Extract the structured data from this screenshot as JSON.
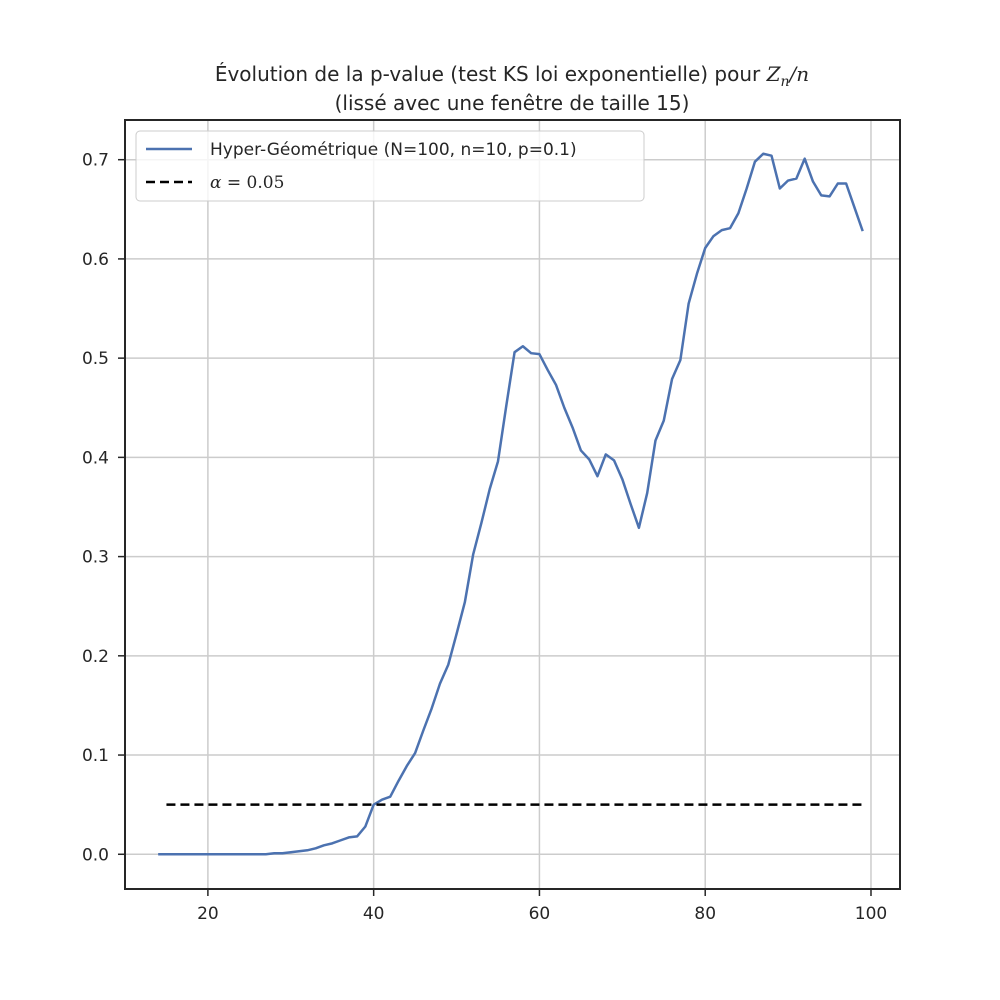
{
  "chart_data": {
    "type": "line",
    "title_line1": "Évolution de la p-value (test KS loi exponentielle) pour ",
    "title_math_Z": "Z",
    "title_math_sub": "n",
    "title_math_rest": "/n",
    "title_line2": "(lissé avec une fenêtre de taille 15)",
    "xlabel": "",
    "ylabel": "",
    "xlim": [
      10,
      103.5
    ],
    "ylim": [
      -0.035,
      0.74
    ],
    "xticks": [
      20,
      40,
      60,
      80,
      100
    ],
    "yticks": [
      0.0,
      0.1,
      0.2,
      0.3,
      0.4,
      0.5,
      0.6,
      0.7
    ],
    "xtick_labels": [
      "20",
      "40",
      "60",
      "80",
      "100"
    ],
    "ytick_labels": [
      "0.0",
      "0.1",
      "0.2",
      "0.3",
      "0.4",
      "0.5",
      "0.6",
      "0.7"
    ],
    "grid": true,
    "legend_position": "top-left",
    "series": [
      {
        "name": "Hyper-Géométrique (N=100, n=10, p=0.1)",
        "color": "#4c72b0",
        "style": "solid",
        "x": [
          14,
          15,
          16,
          17,
          18,
          19,
          20,
          21,
          22,
          23,
          24,
          25,
          26,
          27,
          28,
          29,
          30,
          31,
          32,
          33,
          34,
          35,
          36,
          37,
          38,
          39,
          40,
          41,
          42,
          43,
          44,
          45,
          46,
          47,
          48,
          49,
          50,
          51,
          52,
          53,
          54,
          55,
          56,
          57,
          58,
          59,
          60,
          61,
          62,
          63,
          64,
          65,
          66,
          67,
          68,
          69,
          70,
          71,
          72,
          73,
          74,
          75,
          76,
          77,
          78,
          79,
          80,
          81,
          82,
          83,
          84,
          85,
          86,
          87,
          88,
          89,
          90,
          91,
          92,
          93,
          94,
          95,
          96,
          97,
          98,
          99
        ],
        "y": [
          0,
          0,
          0,
          0,
          0,
          0,
          0,
          0,
          0,
          0,
          0,
          0,
          0,
          0,
          0.001,
          0.001,
          0.002,
          0.003,
          0.004,
          0.006,
          0.009,
          0.011,
          0.014,
          0.017,
          0.018,
          0.028,
          0.05,
          0.055,
          0.058,
          0.074,
          0.089,
          0.102,
          0.125,
          0.147,
          0.172,
          0.191,
          0.222,
          0.254,
          0.302,
          0.334,
          0.368,
          0.396,
          0.452,
          0.506,
          0.512,
          0.505,
          0.504,
          0.488,
          0.473,
          0.45,
          0.43,
          0.407,
          0.398,
          0.381,
          0.403,
          0.397,
          0.378,
          0.353,
          0.329,
          0.364,
          0.417,
          0.437,
          0.479,
          0.498,
          0.555,
          0.585,
          0.611,
          0.623,
          0.629,
          0.631,
          0.646,
          0.671,
          0.698,
          0.706,
          0.704,
          0.671,
          0.679,
          0.681,
          0.701,
          0.678,
          0.664,
          0.663,
          0.676,
          0.676,
          0.652,
          0.628
        ]
      },
      {
        "name": "α = 0.05",
        "legend_math_symbol": "α",
        "legend_math_rest": " = 0.05",
        "color": "#000000",
        "style": "dashed",
        "x": [
          15,
          99
        ],
        "y": [
          0.05,
          0.05
        ]
      }
    ]
  }
}
